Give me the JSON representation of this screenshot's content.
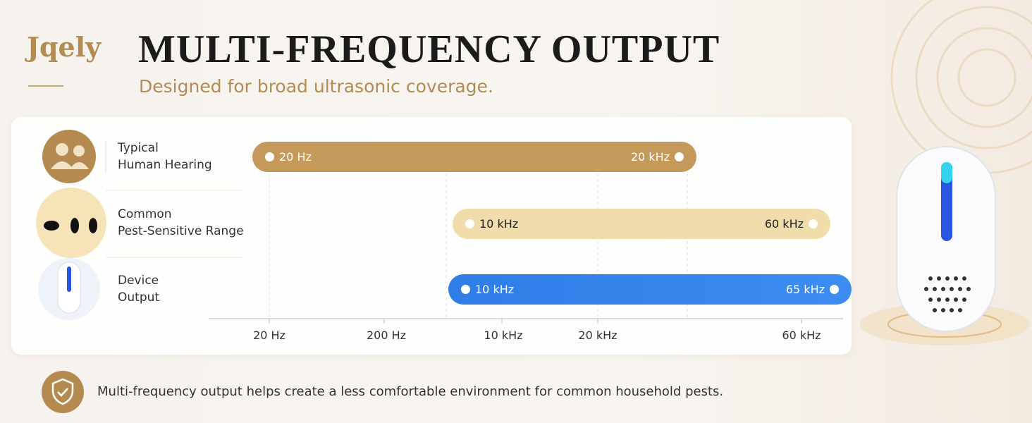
{
  "header": {
    "logo": "Jqely",
    "title": "MULTI-FREQUENCY OUTPUT",
    "subtitle": "Designed for broad ultrasonic coverage."
  },
  "rows": [
    {
      "label": [
        "Typical",
        "Human Hearing"
      ],
      "start": "20 Hz",
      "end": "20 kHz"
    },
    {
      "label": [
        "Common",
        "Pest-Sensitive Range"
      ],
      "start": "10 kHz",
      "end": "60 kHz"
    },
    {
      "label": [
        "Device",
        "Output"
      ],
      "start": "10 kHz",
      "end": "65 kHz"
    }
  ],
  "axis": {
    "ticks": [
      "20 Hz",
      "200 Hz",
      "10 kHz",
      "20 kHz",
      "60 kHz"
    ]
  },
  "footer": {
    "note": "Multi-frequency output helps create a less comfortable environment for common household pests."
  }
}
